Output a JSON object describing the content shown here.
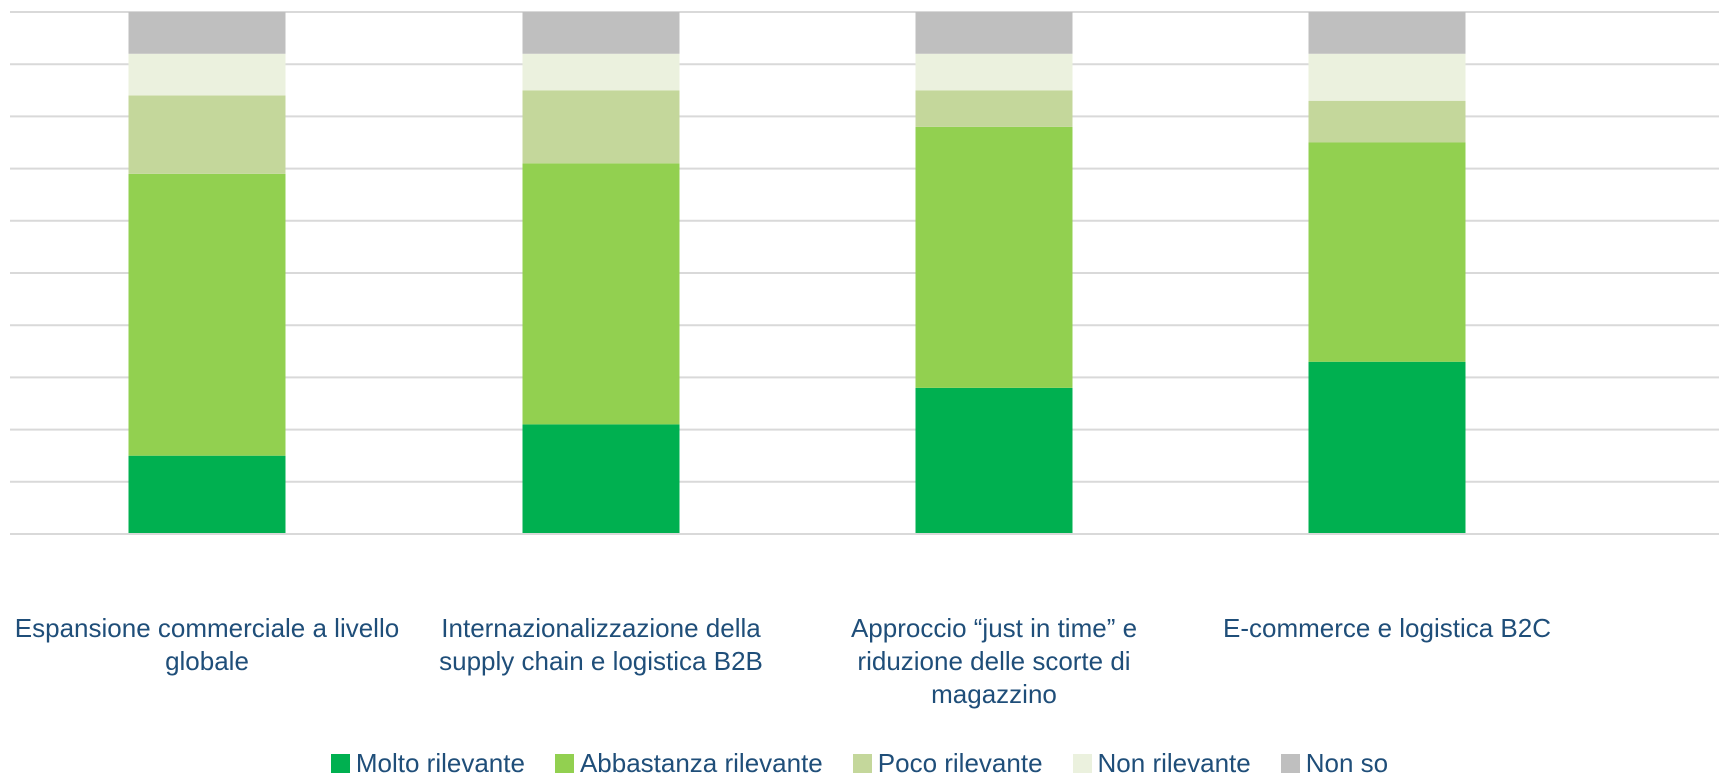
{
  "chart_data": {
    "type": "bar",
    "stacked": true,
    "title": "",
    "xlabel": "",
    "ylabel": "",
    "ylim": [
      0,
      100
    ],
    "grid": true,
    "legend_position": "bottom",
    "categories": [
      "Espansione commerciale a livello globale",
      "Internazionalizzazione della supply chain e logistica B2B",
      "Approccio “just in time” e riduzione delle scorte di magazzino",
      "E-commerce e logistica B2C"
    ],
    "series": [
      {
        "name": "Molto rilevante",
        "color": "#00b050",
        "values": [
          15,
          21,
          28,
          33
        ]
      },
      {
        "name": "Abbastanza rilevante",
        "color": "#92d050",
        "values": [
          54,
          50,
          50,
          42
        ]
      },
      {
        "name": "Poco rilevante",
        "color": "#c4d79b",
        "values": [
          15,
          14,
          7,
          8
        ]
      },
      {
        "name": "Non rilevante",
        "color": "#ebf1de",
        "values": [
          8,
          7,
          7,
          9
        ]
      },
      {
        "name": "Non so",
        "color": "#bfbfbf",
        "values": [
          8,
          8,
          8,
          8
        ]
      }
    ]
  }
}
